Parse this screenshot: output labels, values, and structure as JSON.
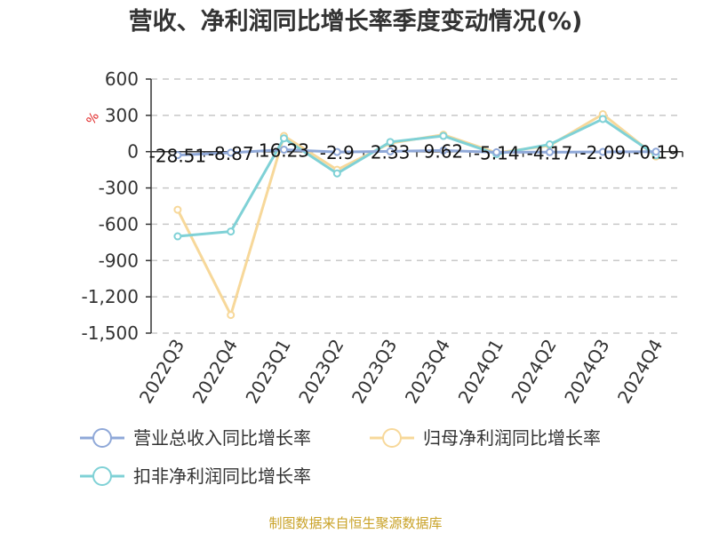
{
  "chart_data": {
    "type": "line",
    "title": "营收、净利润同比增长率季度变动情况(%)",
    "unit": "%",
    "categories": [
      "2022Q3",
      "2022Q4",
      "2023Q1",
      "2023Q2",
      "2023Q3",
      "2023Q4",
      "2024Q1",
      "2024Q2",
      "2024Q3",
      "2024Q4"
    ],
    "yticks": [
      "600",
      "300",
      "0",
      "-300",
      "-600",
      "-900",
      "-1,200",
      "-1,500"
    ],
    "ylim": [
      -1500,
      600
    ],
    "grid": true,
    "legend_position": "bottom",
    "series": [
      {
        "name": "营业总收入同比增长率",
        "color": "#8fa8d8",
        "values": [
          -28.51,
          -8.87,
          16.23,
          -2.9,
          2.33,
          9.62,
          -5.14,
          -4.17,
          -2.09,
          -0.19
        ],
        "labels": [
          "-28.51",
          "-8.87",
          "16.23",
          "-2.9",
          "2.33",
          "9.62",
          "-5.14",
          "-4.17",
          "-2.09",
          "-0.19"
        ]
      },
      {
        "name": "归母净利润同比增长率",
        "color": "#f7d89a",
        "values": [
          -480,
          -1350,
          130,
          -150,
          70,
          140,
          -10,
          50,
          310,
          -40
        ]
      },
      {
        "name": "扣非净利润同比增长率",
        "color": "#7fd1d6",
        "values": [
          -700,
          -660,
          110,
          -180,
          80,
          130,
          -20,
          60,
          270,
          -30
        ]
      }
    ]
  },
  "source": "制图数据来自恒生聚源数据库"
}
